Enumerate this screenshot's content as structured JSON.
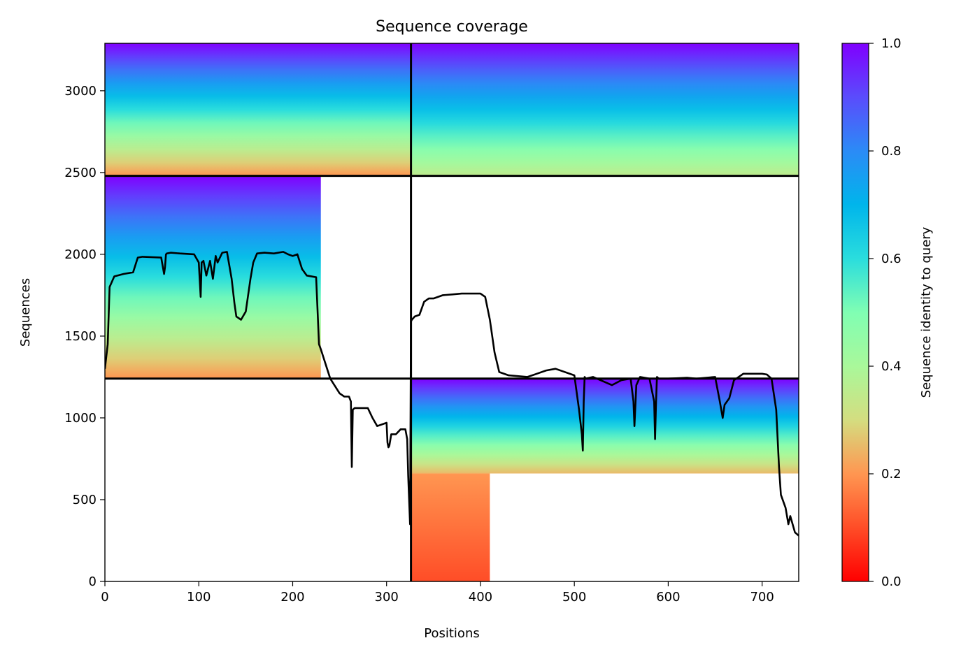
{
  "chart_data": {
    "type": "heatmap",
    "title": "Sequence coverage",
    "xlabel": "Positions",
    "ylabel": "Sequences",
    "xlim": [
      0,
      739
    ],
    "ylim": [
      0,
      3290
    ],
    "x_ticks": [
      0,
      100,
      200,
      300,
      400,
      500,
      600,
      700
    ],
    "y_ticks": [
      0,
      500,
      1000,
      1500,
      2000,
      2500,
      3000
    ],
    "colorbar": {
      "label": "Sequence identity to query",
      "colormap": "rainbow",
      "range": [
        0,
        1
      ],
      "ticks": [
        "0.0",
        "0.2",
        "0.4",
        "0.6",
        "0.8",
        "1.0"
      ]
    },
    "chain_boundary_x": 326,
    "block_boundaries_y": [
      1240,
      2480
    ],
    "blocks": [
      {
        "x": [
          0,
          326
        ],
        "y": [
          2480,
          3290
        ],
        "covered_to_x": 326,
        "identity_range": [
          0.2,
          1.0
        ]
      },
      {
        "x": [
          326,
          739
        ],
        "y": [
          2480,
          3290
        ],
        "covered_to_x": 739,
        "identity_range": [
          0.35,
          1.0
        ]
      },
      {
        "x": [
          0,
          326
        ],
        "y": [
          1240,
          2480
        ],
        "covered_to_x": 230,
        "identity_range": [
          0.2,
          1.0
        ]
      },
      {
        "x": [
          326,
          739
        ],
        "y": [
          660,
          1240
        ],
        "covered_to_x": 739,
        "identity_range": [
          0.25,
          1.0
        ]
      },
      {
        "x": [
          326,
          739
        ],
        "y": [
          0,
          660
        ],
        "covered_to_x": 410,
        "identity_range": [
          0.1,
          0.2
        ]
      }
    ],
    "coverage_line": {
      "x": [
        0,
        3,
        5,
        10,
        20,
        30,
        35,
        40,
        60,
        63,
        64,
        65,
        66,
        70,
        80,
        95,
        100,
        102,
        103,
        105,
        108,
        112,
        115,
        118,
        120,
        125,
        130,
        135,
        138,
        140,
        145,
        150,
        155,
        158,
        162,
        170,
        180,
        190,
        195,
        200,
        205,
        210,
        215,
        225,
        228,
        230,
        240,
        250,
        255,
        260,
        262,
        263,
        264,
        266,
        270,
        280,
        285,
        290,
        300,
        301,
        302,
        303,
        305,
        310,
        315,
        320,
        322,
        323,
        325,
        326,
        327,
        330,
        335,
        340,
        345,
        350,
        360,
        370,
        380,
        390,
        400,
        405,
        410,
        415,
        420,
        430,
        450,
        460,
        470,
        480,
        500,
        505,
        508,
        509,
        510,
        511,
        512,
        520,
        540,
        550,
        560,
        563,
        564,
        566,
        570,
        580,
        585,
        586,
        587,
        588,
        590,
        600,
        620,
        630,
        650,
        655,
        658,
        660,
        665,
        670,
        680,
        690,
        700,
        705,
        710,
        715,
        718,
        720,
        725,
        728,
        730,
        735,
        739
      ],
      "y": [
        1300,
        1450,
        1800,
        1865,
        1880,
        1890,
        1980,
        1985,
        1980,
        1880,
        1920,
        2000,
        2005,
        2010,
        2005,
        2000,
        1950,
        1740,
        1950,
        1960,
        1870,
        1960,
        1850,
        1990,
        1950,
        2010,
        2015,
        1850,
        1700,
        1620,
        1600,
        1650,
        1850,
        1950,
        2005,
        2010,
        2005,
        2015,
        2000,
        1990,
        2000,
        1910,
        1870,
        1860,
        1450,
        1420,
        1240,
        1150,
        1130,
        1130,
        1100,
        700,
        1050,
        1060,
        1060,
        1060,
        1000,
        950,
        970,
        850,
        820,
        830,
        900,
        900,
        930,
        930,
        870,
        650,
        350,
        1590,
        1600,
        1620,
        1630,
        1710,
        1730,
        1730,
        1750,
        1755,
        1760,
        1760,
        1760,
        1740,
        1600,
        1400,
        1280,
        1260,
        1250,
        1270,
        1290,
        1300,
        1260,
        1050,
        900,
        800,
        1100,
        1250,
        1240,
        1250,
        1200,
        1230,
        1240,
        1100,
        950,
        1200,
        1250,
        1240,
        1100,
        870,
        1100,
        1250,
        1240,
        1240,
        1245,
        1240,
        1250,
        1100,
        1000,
        1080,
        1120,
        1230,
        1270,
        1270,
        1270,
        1265,
        1240,
        1050,
        700,
        530,
        450,
        350,
        400,
        300,
        280,
        260
      ]
    }
  }
}
